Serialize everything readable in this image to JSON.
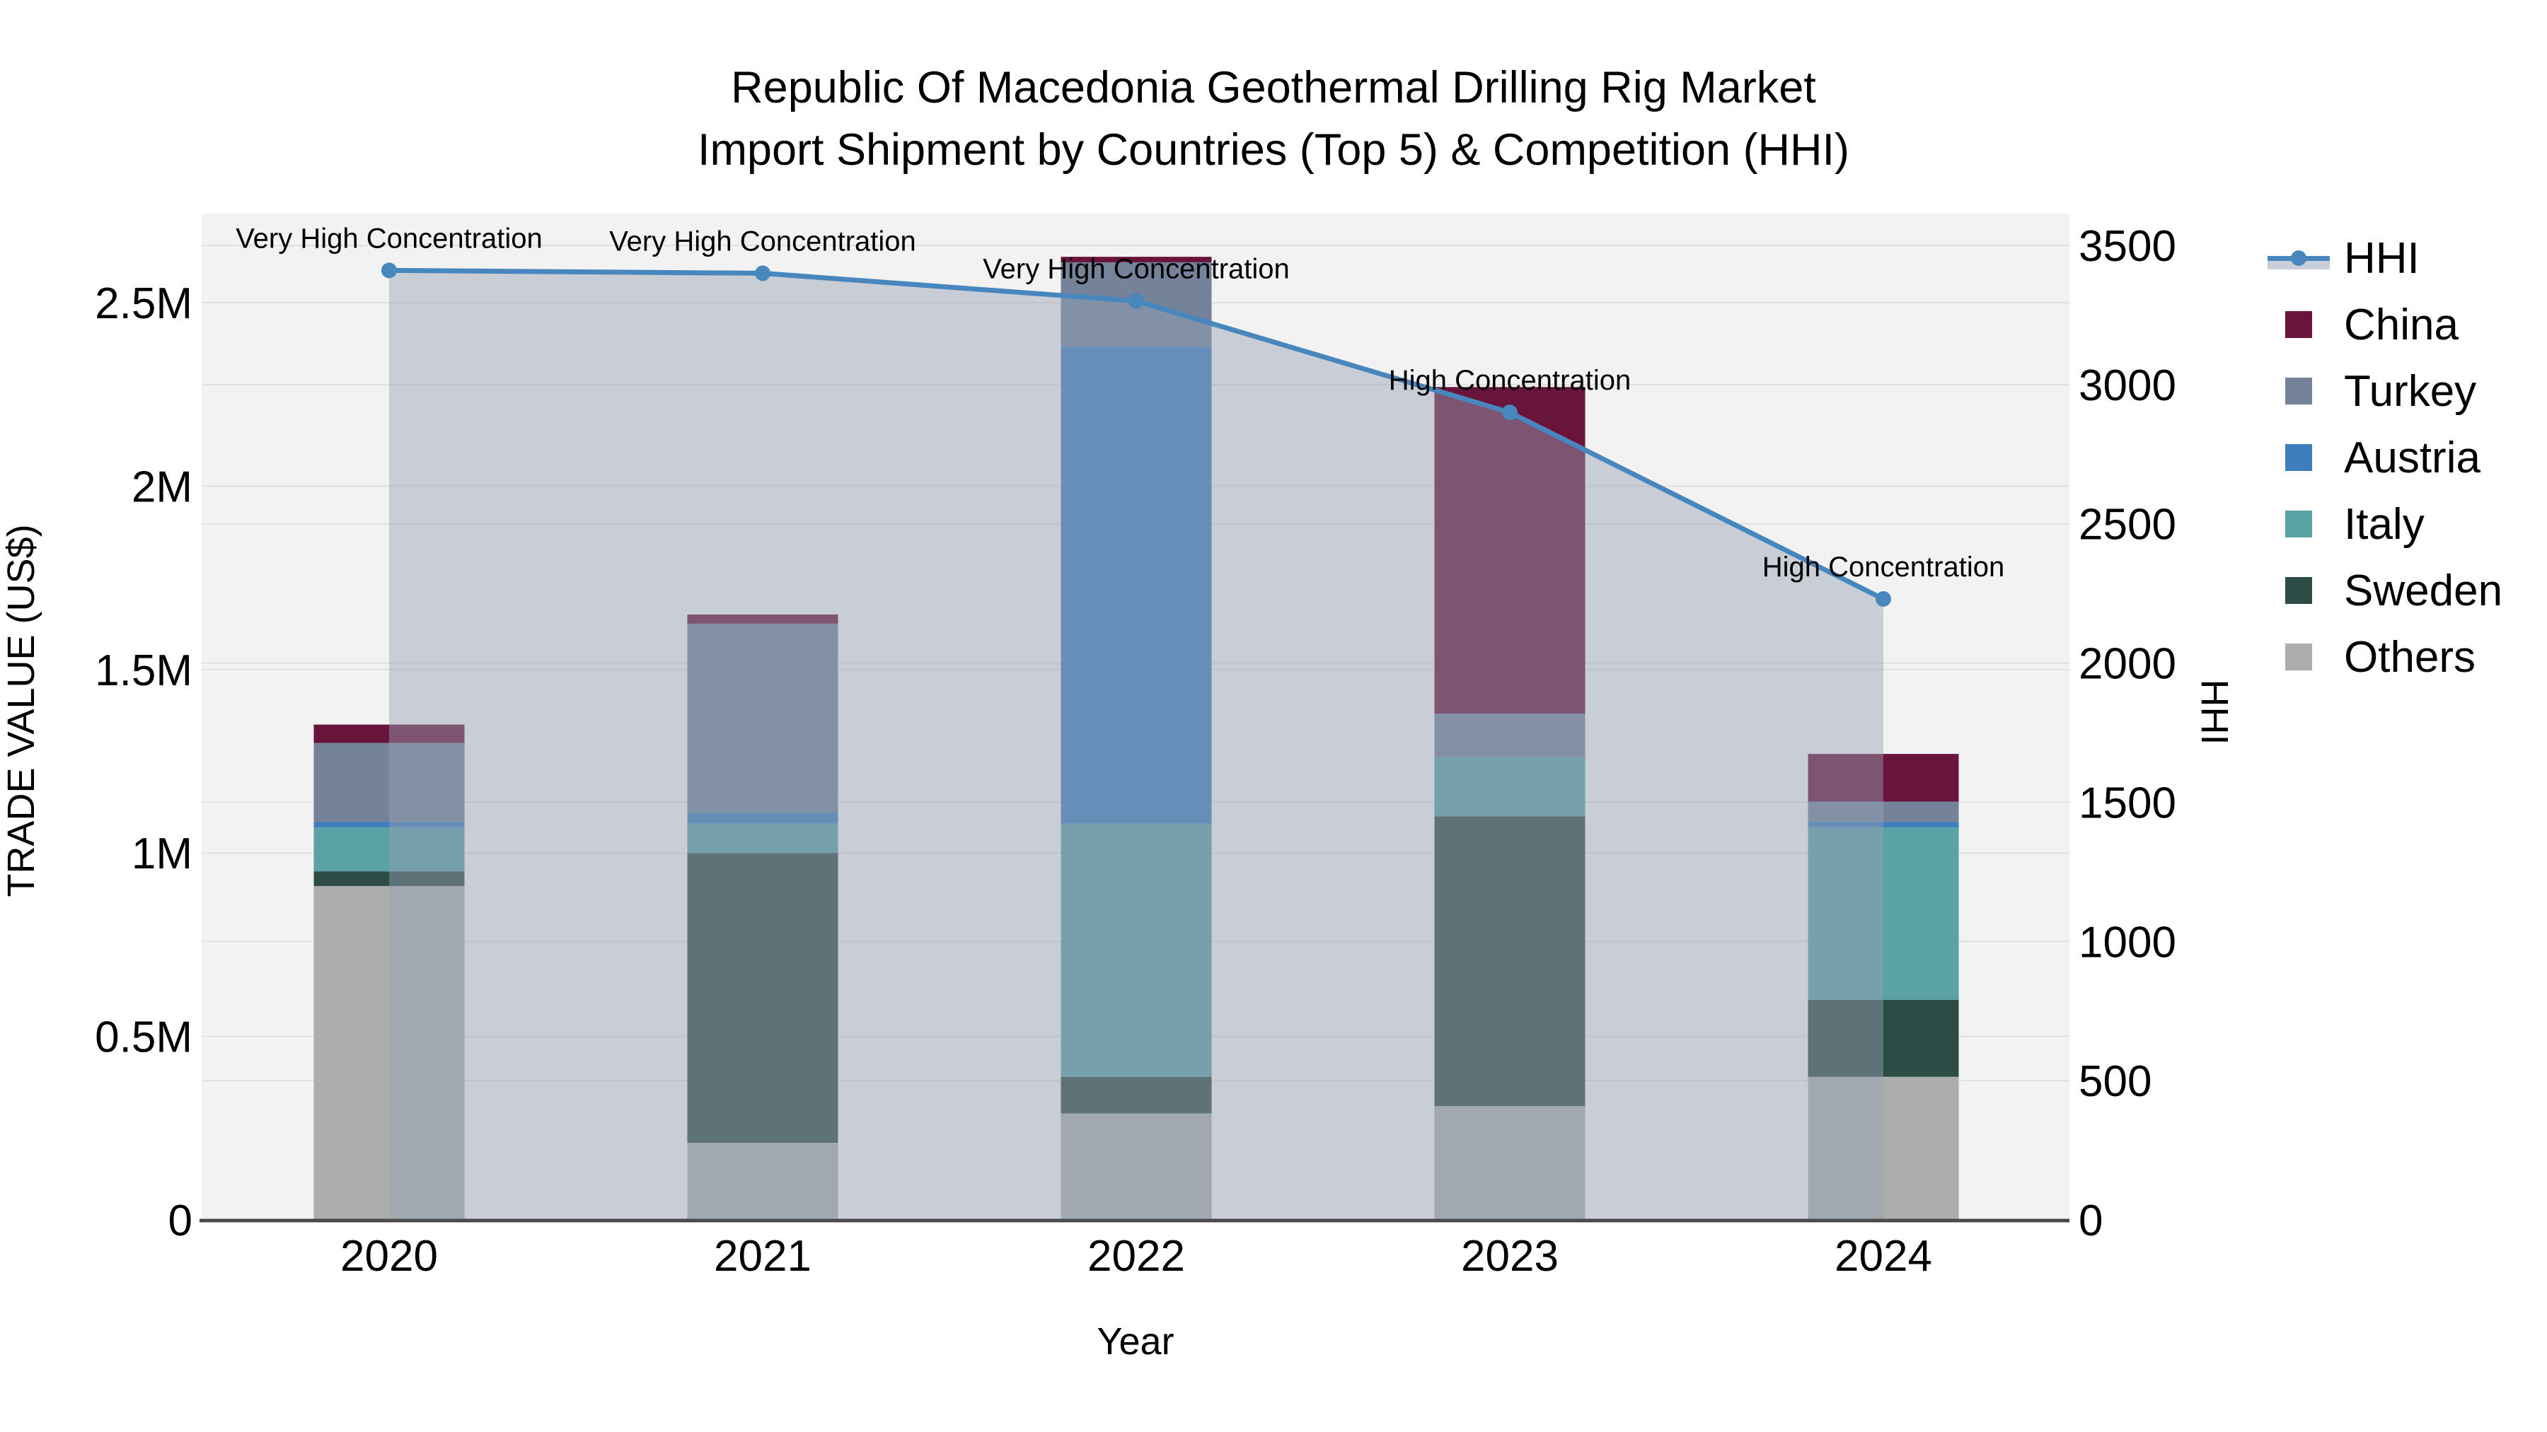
{
  "title": {
    "line1": "Republic Of Macedonia Geothermal Drilling Rig Market",
    "line2": "Import Shipment by Countries (Top 5) & Competition (HHI)"
  },
  "axes": {
    "left": {
      "label": "TRADE VALUE (US$)",
      "ticks": [
        {
          "v": 0,
          "t": "0"
        },
        {
          "v": 0.5,
          "t": "0.5M"
        },
        {
          "v": 1,
          "t": "1M"
        },
        {
          "v": 1.5,
          "t": "1.5M"
        },
        {
          "v": 2,
          "t": "2M"
        },
        {
          "v": 2.5,
          "t": "2.5M"
        }
      ]
    },
    "right": {
      "label": "HHI",
      "ticks": [
        0,
        500,
        1000,
        1500,
        2000,
        2500,
        3000,
        3500
      ]
    },
    "bottom": {
      "label": "Year"
    }
  },
  "chart_data": {
    "type": "bar+line",
    "categories": [
      "2020",
      "2021",
      "2022",
      "2023",
      "2024"
    ],
    "bar_unit": "M US$",
    "stack_order": "bottom to top",
    "series": [
      {
        "name": "Others",
        "color": "#ABAEAB",
        "values": [
          0.91,
          0.21,
          0.29,
          0.31,
          0.39
        ]
      },
      {
        "name": "Sweden",
        "color": "#2D4C45",
        "values": [
          0.04,
          0.79,
          0.1,
          0.79,
          0.21
        ]
      },
      {
        "name": "Italy",
        "color": "#5BA2A4",
        "values": [
          0.12,
          0.08,
          0.69,
          0.16,
          0.47
        ]
      },
      {
        "name": "Austria",
        "color": "#3F7EBC",
        "values": [
          0.015,
          0.03,
          1.3,
          0.0,
          0.015
        ]
      },
      {
        "name": "Turkey",
        "color": "#74839A",
        "values": [
          0.215,
          0.515,
          0.23,
          0.12,
          0.055
        ]
      },
      {
        "name": "China",
        "color": "#69143B",
        "values": [
          0.05,
          0.025,
          0.015,
          0.89,
          0.13
        ]
      }
    ],
    "line": {
      "name": "HHI",
      "color": "#4787BE",
      "area_fill": "rgba(151,161,180,0.46)",
      "values": [
        3410,
        3400,
        3300,
        2900,
        2230
      ]
    },
    "annotations": [
      {
        "x": "2020",
        "text": "Very High Concentration"
      },
      {
        "x": "2021",
        "text": "Very High Concentration"
      },
      {
        "x": "2022",
        "text": "Very High Concentration"
      },
      {
        "x": "2023",
        "text": "High Concentration"
      },
      {
        "x": "2024",
        "text": "High Concentration"
      }
    ],
    "ylim_left_m": [
      0,
      2.74
    ],
    "ylim_right": [
      0,
      3615
    ],
    "grid": true,
    "legend_position": "right"
  },
  "legend": {
    "items": [
      {
        "label": "HHI",
        "type": "line"
      },
      {
        "label": "China",
        "type": "swatch",
        "color": "#69143B"
      },
      {
        "label": "Turkey",
        "type": "swatch",
        "color": "#74839A"
      },
      {
        "label": "Austria",
        "type": "swatch",
        "color": "#3F7EBC"
      },
      {
        "label": "Italy",
        "type": "swatch",
        "color": "#5BA2A4"
      },
      {
        "label": "Sweden",
        "type": "swatch",
        "color": "#2D4C45"
      },
      {
        "label": "Others",
        "type": "swatch",
        "color": "#ABAEAB"
      }
    ]
  },
  "style": {
    "plot_bg": "#F2F2F2",
    "gridline": "#E0E0E3",
    "axis_line": "#4A4A4A",
    "text_color": "#000000"
  }
}
